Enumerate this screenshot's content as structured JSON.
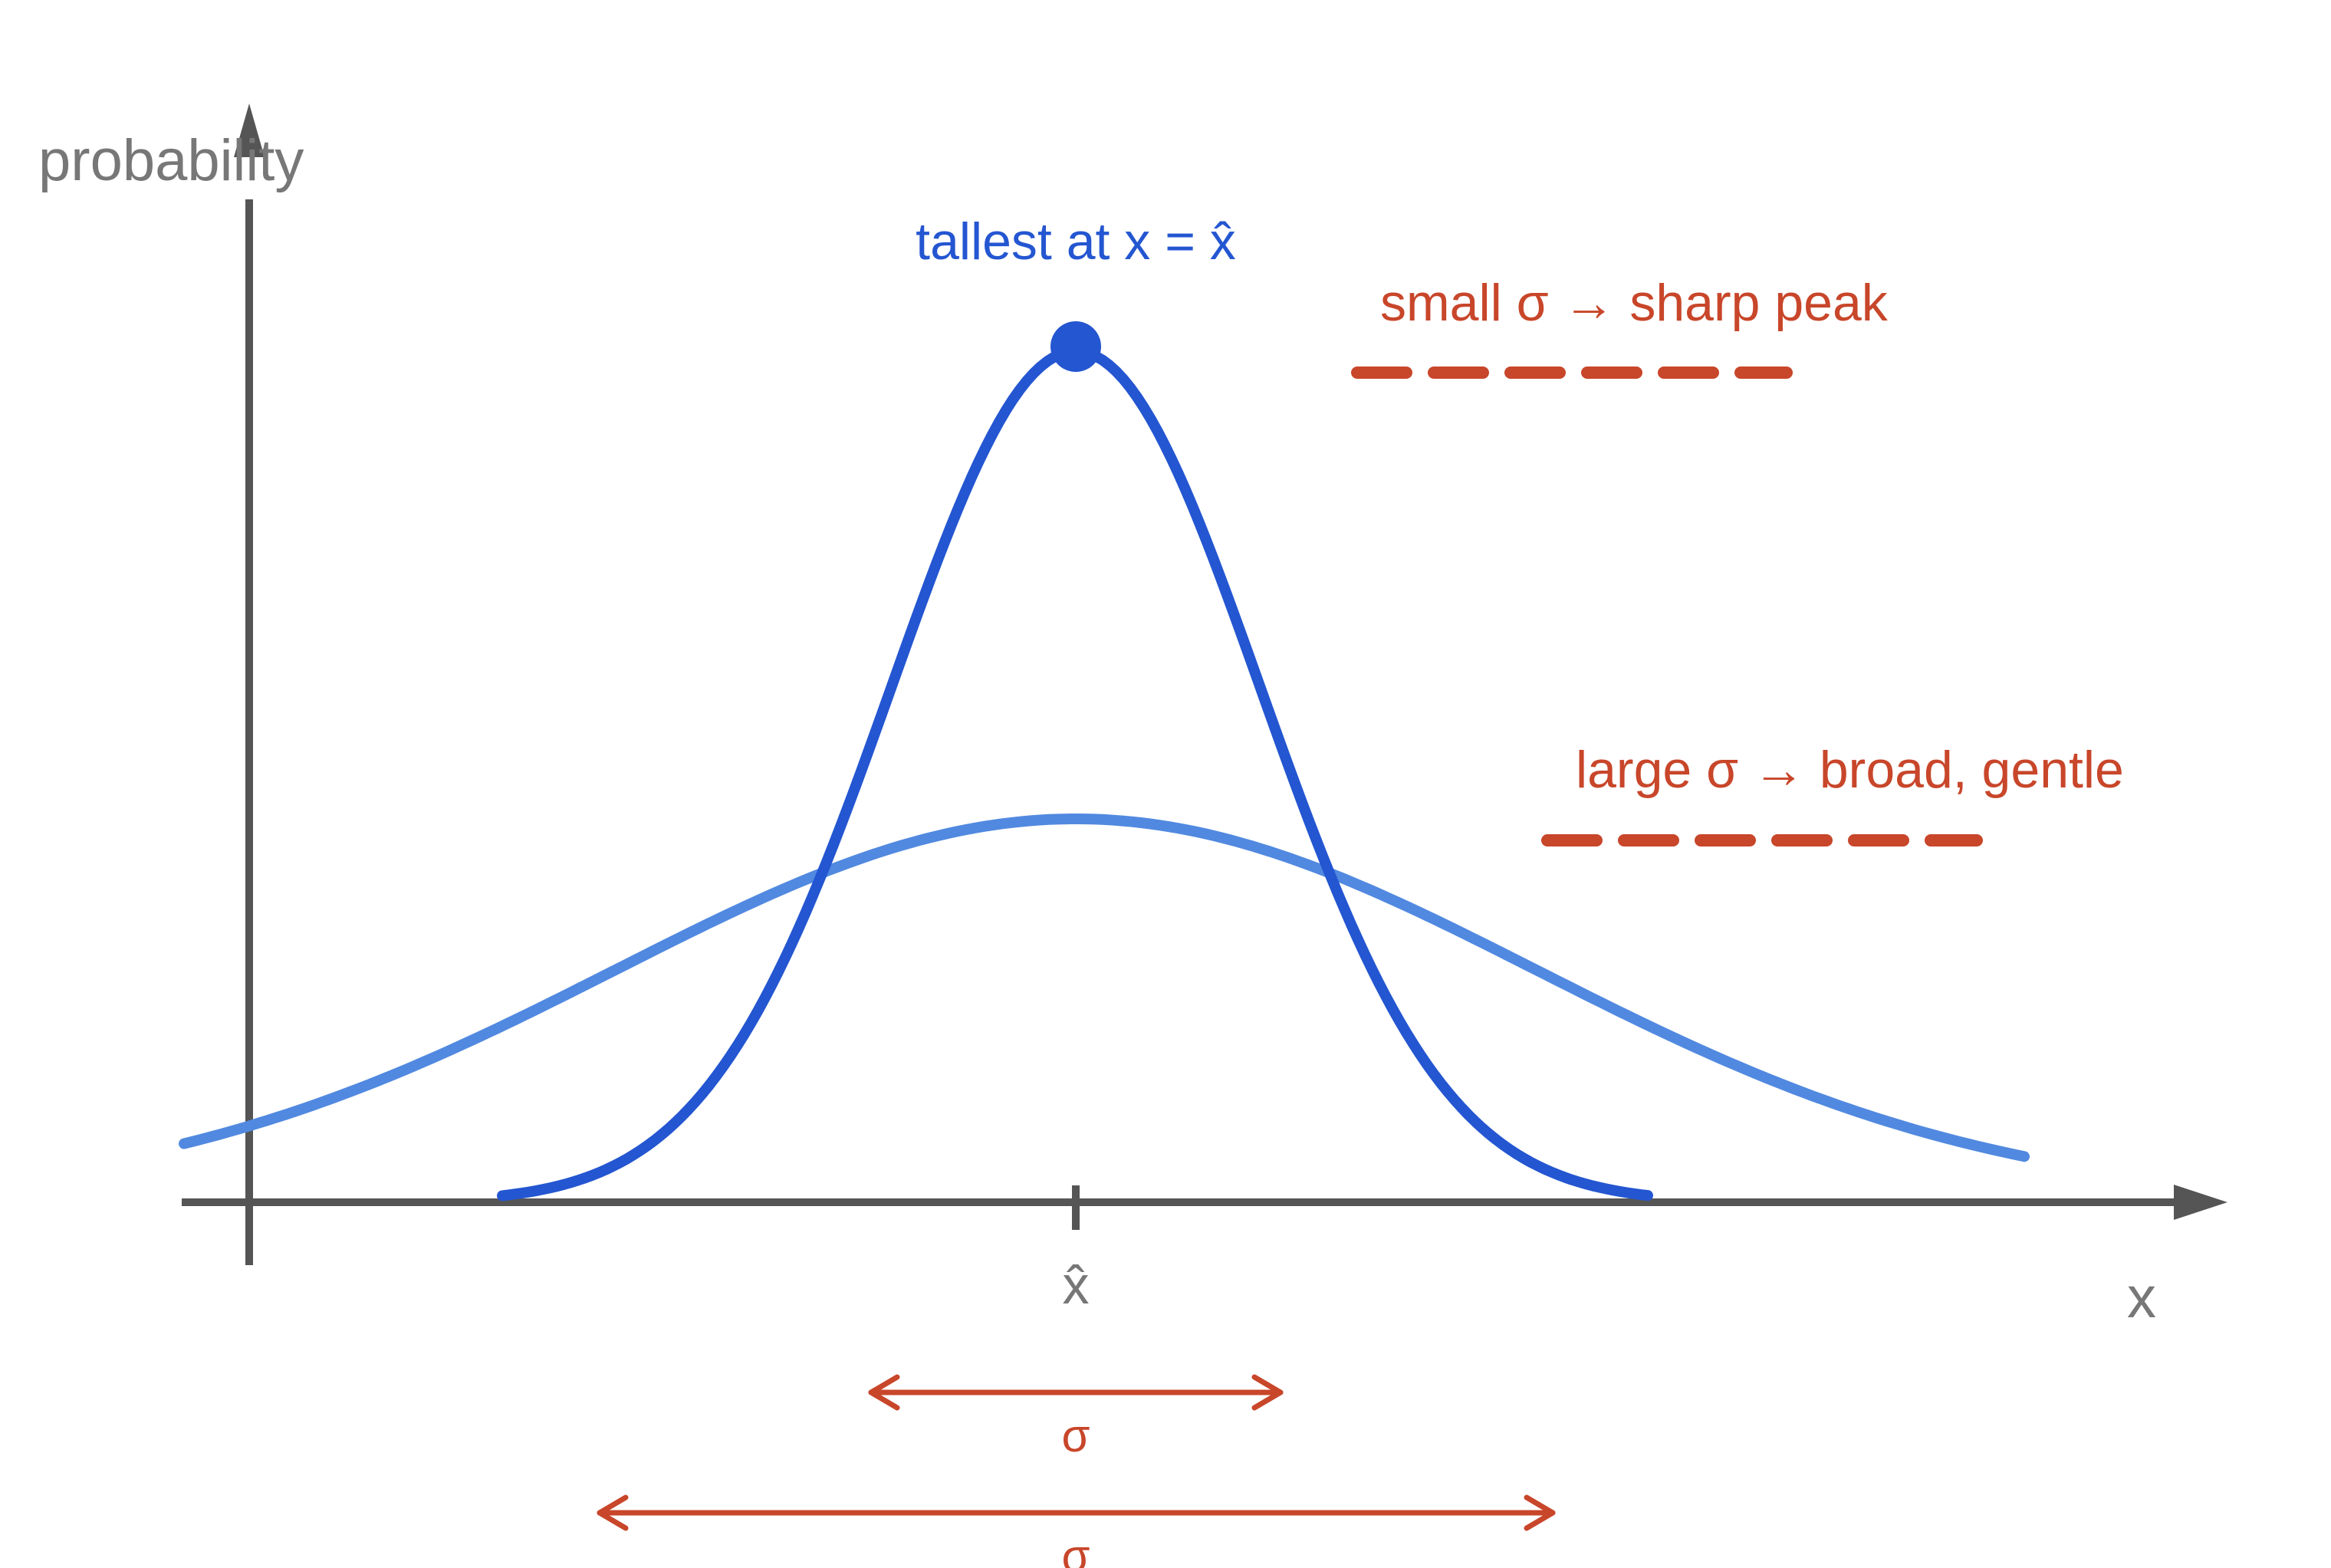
{
  "axes": {
    "y_label": "probability",
    "x_label": "x",
    "mean_tick_label": "x̂"
  },
  "peak_annotation": "tallest at x = x̂",
  "legend": {
    "small_sigma": "small σ → sharp peak",
    "large_sigma": "large σ → broad, gentle"
  },
  "sigma_labels": {
    "narrow": "σ",
    "wide": "σ"
  },
  "colors": {
    "axis": "#555555",
    "axis_text": "#777777",
    "narrow_curve": "#2456d1",
    "wide_curve": "#5189e0",
    "accent": "#c8462a"
  }
}
